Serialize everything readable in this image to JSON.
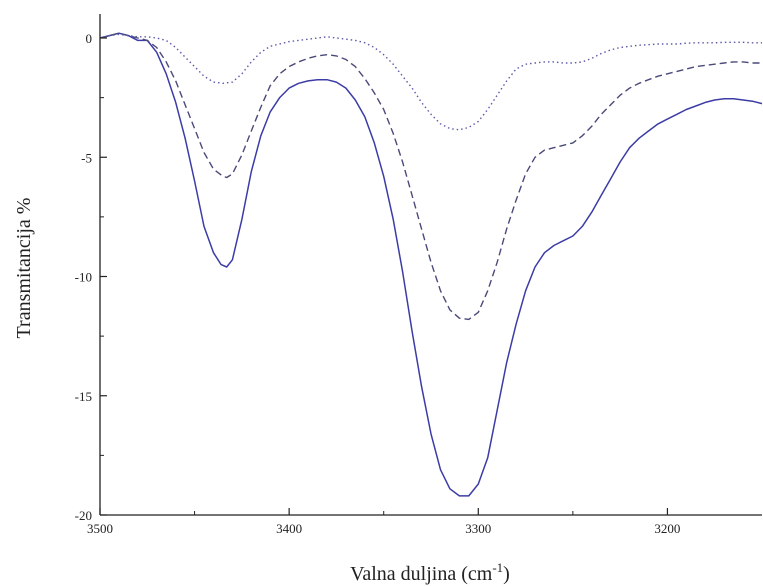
{
  "chart_data": {
    "type": "line",
    "xlabel": "Valna duljina (cm",
    "xlabel_sup": "-1",
    "xlabel_end": ")",
    "ylabel": "Transmitancija %",
    "xlim": [
      3500,
      3150
    ],
    "ylim": [
      -20,
      1
    ],
    "x_reversed": true,
    "x_ticks": [
      3500,
      3400,
      3300,
      3200
    ],
    "y_ticks": [
      0,
      -5,
      -10,
      -15,
      -20
    ],
    "grid": false,
    "legend": "none",
    "series": [
      {
        "style": "solid",
        "color": "#3c3ca6",
        "points": [
          [
            3500,
            0
          ],
          [
            3495,
            0.1
          ],
          [
            3490,
            0.2
          ],
          [
            3485,
            0.1
          ],
          [
            3480,
            -0.1
          ],
          [
            3475,
            -0.1
          ],
          [
            3470,
            -0.6
          ],
          [
            3465,
            -1.5
          ],
          [
            3460,
            -2.7
          ],
          [
            3455,
            -4.2
          ],
          [
            3450,
            -6.0
          ],
          [
            3445,
            -7.9
          ],
          [
            3440,
            -9.0
          ],
          [
            3436,
            -9.5
          ],
          [
            3433,
            -9.6
          ],
          [
            3430,
            -9.3
          ],
          [
            3425,
            -7.6
          ],
          [
            3420,
            -5.6
          ],
          [
            3415,
            -4.1
          ],
          [
            3410,
            -3.1
          ],
          [
            3405,
            -2.5
          ],
          [
            3400,
            -2.1
          ],
          [
            3395,
            -1.9
          ],
          [
            3390,
            -1.8
          ],
          [
            3385,
            -1.75
          ],
          [
            3380,
            -1.75
          ],
          [
            3375,
            -1.85
          ],
          [
            3370,
            -2.1
          ],
          [
            3365,
            -2.6
          ],
          [
            3360,
            -3.3
          ],
          [
            3355,
            -4.4
          ],
          [
            3350,
            -5.8
          ],
          [
            3345,
            -7.6
          ],
          [
            3340,
            -9.8
          ],
          [
            3335,
            -12.3
          ],
          [
            3330,
            -14.6
          ],
          [
            3325,
            -16.6
          ],
          [
            3320,
            -18.1
          ],
          [
            3315,
            -18.9
          ],
          [
            3310,
            -19.2
          ],
          [
            3305,
            -19.2
          ],
          [
            3300,
            -18.7
          ],
          [
            3295,
            -17.6
          ],
          [
            3290,
            -15.6
          ],
          [
            3285,
            -13.6
          ],
          [
            3280,
            -12.0
          ],
          [
            3275,
            -10.6
          ],
          [
            3270,
            -9.6
          ],
          [
            3265,
            -9.0
          ],
          [
            3260,
            -8.7
          ],
          [
            3255,
            -8.5
          ],
          [
            3250,
            -8.3
          ],
          [
            3245,
            -7.9
          ],
          [
            3240,
            -7.3
          ],
          [
            3235,
            -6.6
          ],
          [
            3230,
            -5.9
          ],
          [
            3225,
            -5.2
          ],
          [
            3220,
            -4.6
          ],
          [
            3215,
            -4.2
          ],
          [
            3210,
            -3.9
          ],
          [
            3205,
            -3.6
          ],
          [
            3200,
            -3.4
          ],
          [
            3195,
            -3.2
          ],
          [
            3190,
            -3.0
          ],
          [
            3185,
            -2.85
          ],
          [
            3180,
            -2.7
          ],
          [
            3175,
            -2.6
          ],
          [
            3170,
            -2.55
          ],
          [
            3165,
            -2.55
          ],
          [
            3160,
            -2.6
          ],
          [
            3155,
            -2.65
          ],
          [
            3150,
            -2.75
          ]
        ]
      },
      {
        "style": "dashed",
        "color": "#4a4a7a",
        "points": [
          [
            3500,
            0
          ],
          [
            3495,
            0.1
          ],
          [
            3490,
            0.2
          ],
          [
            3485,
            0.1
          ],
          [
            3480,
            0
          ],
          [
            3475,
            -0.1
          ],
          [
            3470,
            -0.4
          ],
          [
            3465,
            -1.0
          ],
          [
            3460,
            -1.8
          ],
          [
            3455,
            -2.8
          ],
          [
            3450,
            -3.8
          ],
          [
            3445,
            -4.8
          ],
          [
            3440,
            -5.5
          ],
          [
            3435,
            -5.8
          ],
          [
            3433,
            -5.85
          ],
          [
            3430,
            -5.7
          ],
          [
            3425,
            -4.9
          ],
          [
            3420,
            -3.9
          ],
          [
            3415,
            -2.9
          ],
          [
            3410,
            -2.0
          ],
          [
            3405,
            -1.5
          ],
          [
            3400,
            -1.2
          ],
          [
            3395,
            -1.0
          ],
          [
            3390,
            -0.85
          ],
          [
            3385,
            -0.75
          ],
          [
            3380,
            -0.7
          ],
          [
            3375,
            -0.75
          ],
          [
            3370,
            -0.9
          ],
          [
            3365,
            -1.2
          ],
          [
            3360,
            -1.7
          ],
          [
            3355,
            -2.3
          ],
          [
            3350,
            -3.0
          ],
          [
            3345,
            -4.0
          ],
          [
            3340,
            -5.2
          ],
          [
            3335,
            -6.6
          ],
          [
            3330,
            -8.0
          ],
          [
            3325,
            -9.4
          ],
          [
            3320,
            -10.6
          ],
          [
            3315,
            -11.4
          ],
          [
            3310,
            -11.75
          ],
          [
            3305,
            -11.8
          ],
          [
            3300,
            -11.5
          ],
          [
            3295,
            -10.6
          ],
          [
            3290,
            -9.4
          ],
          [
            3285,
            -8.0
          ],
          [
            3280,
            -6.8
          ],
          [
            3275,
            -5.7
          ],
          [
            3270,
            -5.0
          ],
          [
            3265,
            -4.7
          ],
          [
            3260,
            -4.6
          ],
          [
            3255,
            -4.5
          ],
          [
            3250,
            -4.4
          ],
          [
            3245,
            -4.1
          ],
          [
            3240,
            -3.7
          ],
          [
            3235,
            -3.2
          ],
          [
            3230,
            -2.8
          ],
          [
            3225,
            -2.4
          ],
          [
            3220,
            -2.1
          ],
          [
            3215,
            -1.9
          ],
          [
            3210,
            -1.75
          ],
          [
            3205,
            -1.6
          ],
          [
            3200,
            -1.5
          ],
          [
            3195,
            -1.4
          ],
          [
            3190,
            -1.3
          ],
          [
            3185,
            -1.2
          ],
          [
            3180,
            -1.15
          ],
          [
            3175,
            -1.1
          ],
          [
            3170,
            -1.05
          ],
          [
            3165,
            -1.0
          ],
          [
            3160,
            -1.0
          ],
          [
            3155,
            -1.05
          ],
          [
            3150,
            -1.05
          ]
        ]
      },
      {
        "style": "dotted",
        "color": "#5a5aa8",
        "points": [
          [
            3500,
            0
          ],
          [
            3495,
            0.1
          ],
          [
            3490,
            0.15
          ],
          [
            3485,
            0.1
          ],
          [
            3480,
            0.05
          ],
          [
            3475,
            0.05
          ],
          [
            3470,
            0
          ],
          [
            3465,
            -0.1
          ],
          [
            3460,
            -0.4
          ],
          [
            3455,
            -0.8
          ],
          [
            3450,
            -1.2
          ],
          [
            3445,
            -1.6
          ],
          [
            3440,
            -1.85
          ],
          [
            3435,
            -1.9
          ],
          [
            3430,
            -1.85
          ],
          [
            3425,
            -1.5
          ],
          [
            3420,
            -1.0
          ],
          [
            3415,
            -0.6
          ],
          [
            3410,
            -0.35
          ],
          [
            3405,
            -0.25
          ],
          [
            3400,
            -0.15
          ],
          [
            3395,
            -0.1
          ],
          [
            3390,
            -0.05
          ],
          [
            3385,
            0
          ],
          [
            3380,
            0.05
          ],
          [
            3375,
            0
          ],
          [
            3370,
            -0.05
          ],
          [
            3365,
            -0.1
          ],
          [
            3360,
            -0.2
          ],
          [
            3355,
            -0.4
          ],
          [
            3350,
            -0.7
          ],
          [
            3345,
            -1.1
          ],
          [
            3340,
            -1.6
          ],
          [
            3335,
            -2.1
          ],
          [
            3330,
            -2.7
          ],
          [
            3325,
            -3.2
          ],
          [
            3320,
            -3.6
          ],
          [
            3315,
            -3.8
          ],
          [
            3310,
            -3.85
          ],
          [
            3305,
            -3.75
          ],
          [
            3300,
            -3.5
          ],
          [
            3295,
            -3.0
          ],
          [
            3290,
            -2.4
          ],
          [
            3285,
            -1.8
          ],
          [
            3280,
            -1.3
          ],
          [
            3275,
            -1.1
          ],
          [
            3270,
            -1.05
          ],
          [
            3265,
            -1.0
          ],
          [
            3260,
            -1.0
          ],
          [
            3255,
            -1.05
          ],
          [
            3250,
            -1.05
          ],
          [
            3245,
            -1.0
          ],
          [
            3240,
            -0.85
          ],
          [
            3235,
            -0.65
          ],
          [
            3230,
            -0.5
          ],
          [
            3225,
            -0.4
          ],
          [
            3220,
            -0.35
          ],
          [
            3215,
            -0.3
          ],
          [
            3210,
            -0.28
          ],
          [
            3205,
            -0.25
          ],
          [
            3200,
            -0.25
          ],
          [
            3195,
            -0.25
          ],
          [
            3190,
            -0.22
          ],
          [
            3185,
            -0.2
          ],
          [
            3180,
            -0.2
          ],
          [
            3175,
            -0.2
          ],
          [
            3170,
            -0.18
          ],
          [
            3165,
            -0.18
          ],
          [
            3160,
            -0.18
          ],
          [
            3155,
            -0.2
          ],
          [
            3150,
            -0.2
          ]
        ]
      }
    ]
  }
}
